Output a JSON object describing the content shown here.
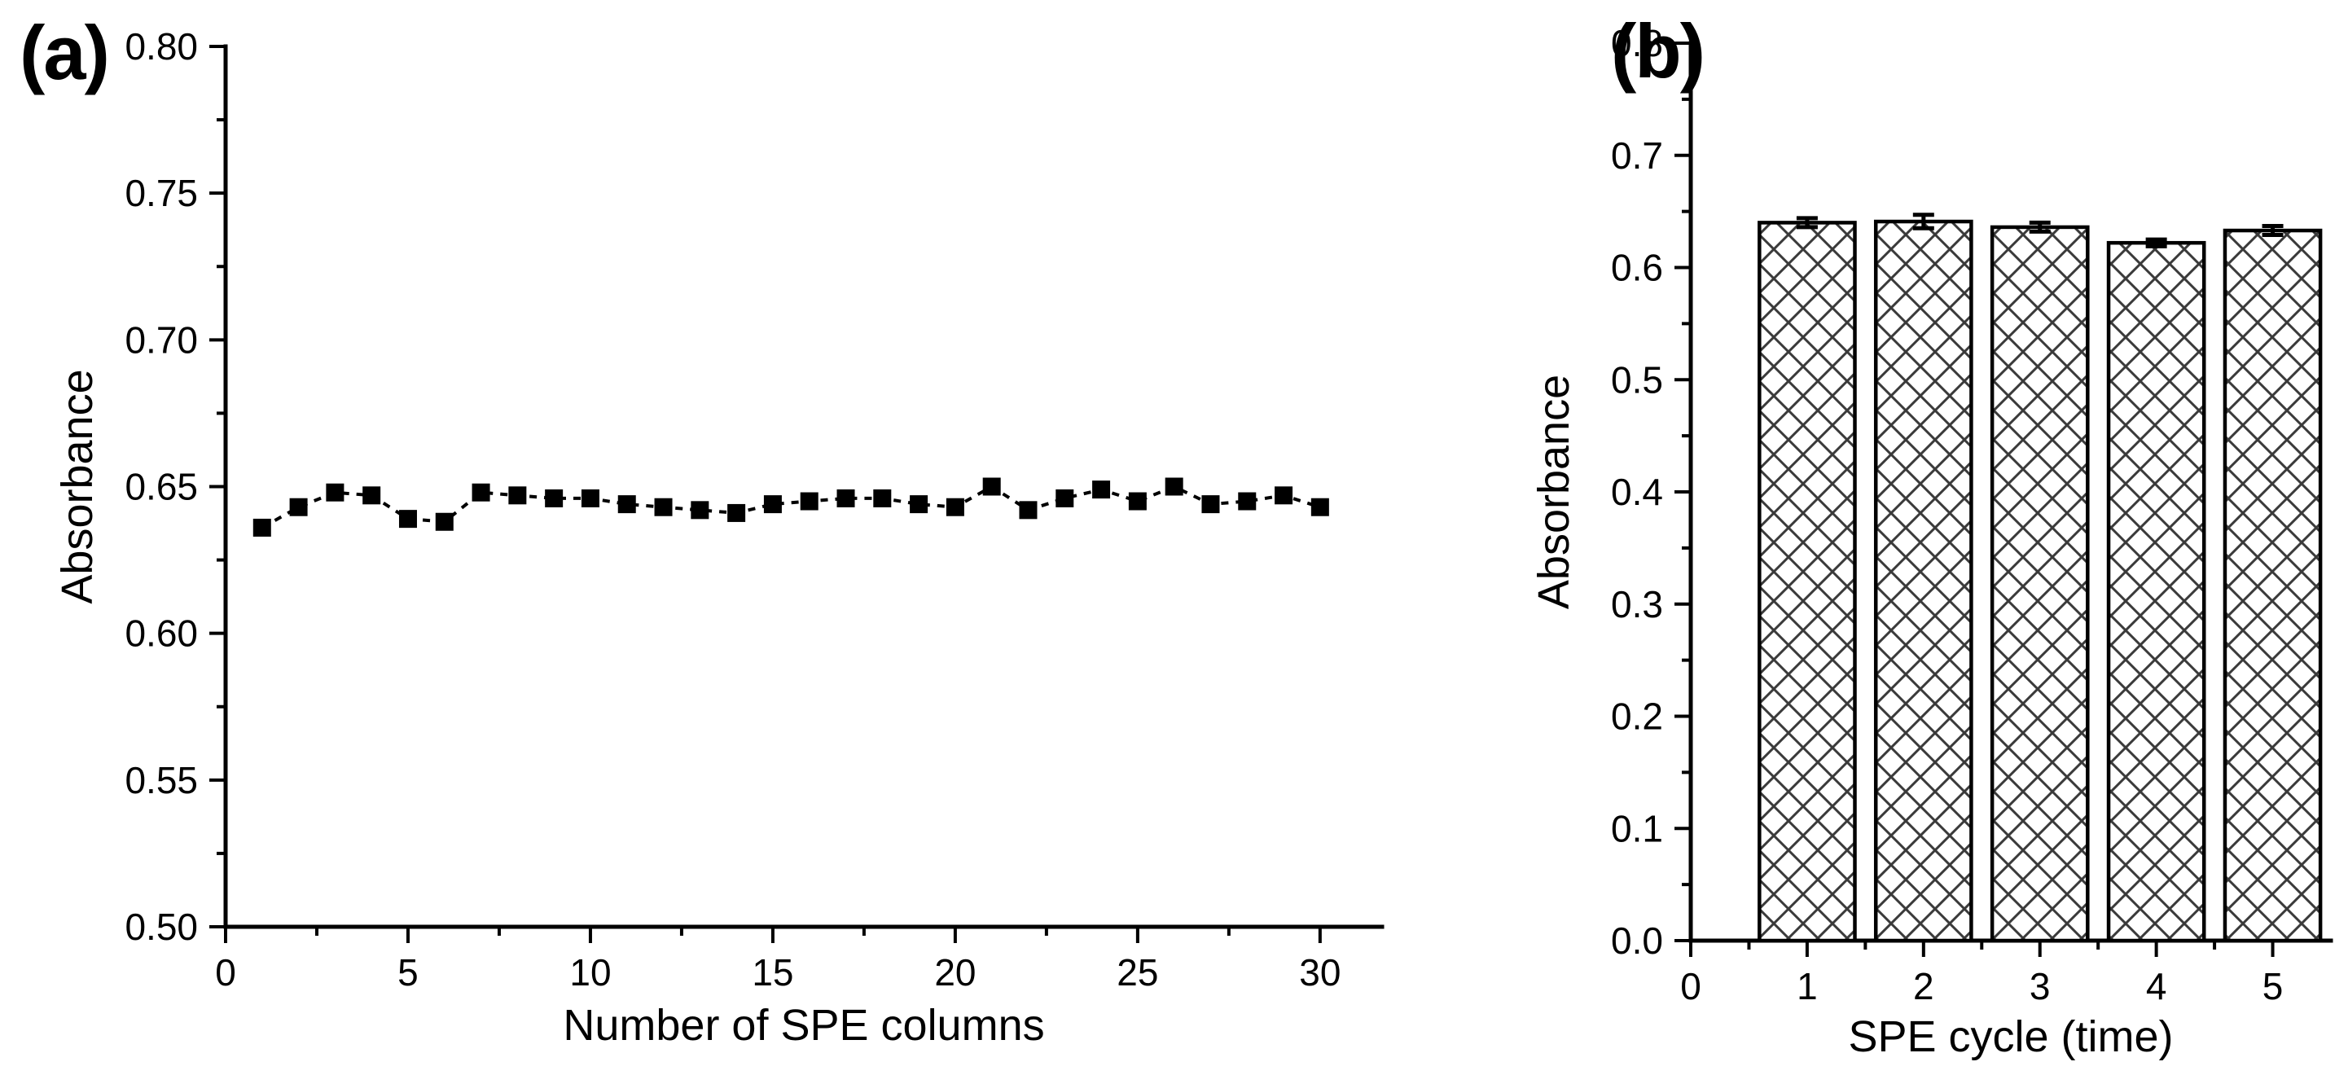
{
  "figure": {
    "background": "#ffffff",
    "ink_color": "#000000",
    "hatch_color": "#3a3a3a",
    "panels": {
      "a": {
        "label": "(a)"
      },
      "b": {
        "label": "(b)"
      }
    }
  },
  "chart_data": [
    {
      "id": "a",
      "type": "line",
      "title": "",
      "xlabel": "Number of SPE columns",
      "ylabel": "Absorbance",
      "x": [
        1,
        2,
        3,
        4,
        5,
        6,
        7,
        8,
        9,
        10,
        11,
        12,
        13,
        14,
        15,
        16,
        17,
        18,
        19,
        20,
        21,
        22,
        23,
        24,
        25,
        26,
        27,
        28,
        29,
        30
      ],
      "y": [
        0.636,
        0.643,
        0.648,
        0.647,
        0.639,
        0.638,
        0.648,
        0.647,
        0.646,
        0.646,
        0.644,
        0.643,
        0.642,
        0.641,
        0.644,
        0.645,
        0.646,
        0.646,
        0.644,
        0.643,
        0.65,
        0.642,
        0.646,
        0.649,
        0.645,
        0.65,
        0.644,
        0.645,
        0.647,
        0.643
      ],
      "xlim": [
        0,
        31.7
      ],
      "ylim": [
        0.5,
        0.8
      ],
      "x_tick_values": [
        0,
        5,
        10,
        15,
        20,
        25,
        30
      ],
      "x_tick_labels": [
        "0",
        "5",
        "10",
        "15",
        "20",
        "25",
        "30"
      ],
      "x_minor_tick_values": [
        2.5,
        7.5,
        12.5,
        17.5,
        22.5,
        27.5
      ],
      "y_tick_values": [
        0.5,
        0.55,
        0.6,
        0.65,
        0.7,
        0.75,
        0.8
      ],
      "y_tick_labels": [
        "0.50",
        "0.55",
        "0.60",
        "0.65",
        "0.70",
        "0.75",
        "0.80"
      ],
      "y_minor_tick_values": [
        0.525,
        0.575,
        0.625,
        0.675,
        0.725,
        0.775
      ],
      "marker": "filled-square",
      "line_style": "dashed",
      "series_color": "#000000",
      "grid": false,
      "legend": "none"
    },
    {
      "id": "b",
      "type": "bar",
      "title": "",
      "xlabel": "SPE cycle (time)",
      "ylabel": "Absorbance",
      "categories": [
        "1",
        "2",
        "3",
        "4",
        "5"
      ],
      "x_positions": [
        1,
        2,
        3,
        4,
        5
      ],
      "values": [
        0.64,
        0.641,
        0.636,
        0.622,
        0.633
      ],
      "errors": [
        0.004,
        0.006,
        0.004,
        0.003,
        0.004
      ],
      "bar_width_units": 0.82,
      "bar_fill": "white-crosshatch",
      "xlim": [
        0,
        5.5
      ],
      "ylim": [
        0.0,
        0.8
      ],
      "x_tick_values": [
        0,
        1,
        2,
        3,
        4,
        5
      ],
      "x_tick_labels": [
        "0",
        "1",
        "2",
        "3",
        "4",
        "5"
      ],
      "x_minor_tick_values": [
        0.5,
        1.5,
        2.5,
        3.5,
        4.5
      ],
      "y_tick_values": [
        0.0,
        0.1,
        0.2,
        0.3,
        0.4,
        0.5,
        0.6,
        0.7,
        0.8
      ],
      "y_tick_labels": [
        "0.0",
        "0.1",
        "0.2",
        "0.3",
        "0.4",
        "0.5",
        "0.6",
        "0.7",
        "0.8"
      ],
      "y_minor_tick_values": [
        0.05,
        0.15,
        0.25,
        0.35,
        0.45,
        0.55,
        0.65,
        0.75
      ],
      "bar_outline_color": "#000000",
      "grid": false,
      "legend": "none"
    }
  ]
}
